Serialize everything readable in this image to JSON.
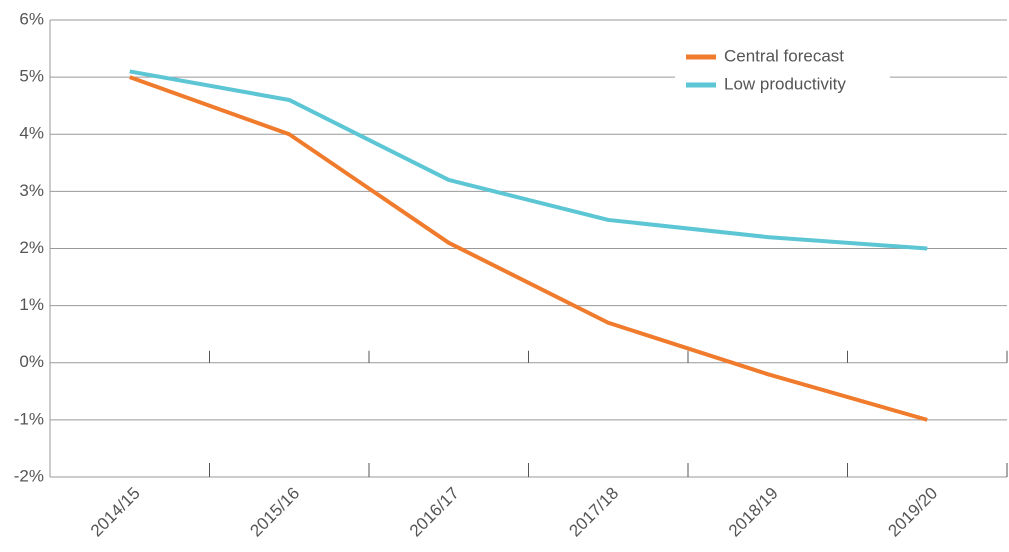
{
  "chart_data": {
    "type": "line",
    "categories": [
      "2014/15",
      "2015/16",
      "2016/17",
      "2017/18",
      "2018/19",
      "2019/20"
    ],
    "series": [
      {
        "name": "Central forecast",
        "color": "#f07b2c",
        "values": [
          5,
          4,
          2.1,
          0.7,
          -0.2,
          -1
        ]
      },
      {
        "name": "Low productivity",
        "color": "#5cc6d5",
        "values": [
          5.1,
          4.6,
          3.2,
          2.5,
          2.2,
          2.0
        ]
      }
    ],
    "ylim": [
      -2,
      6
    ],
    "yticks": [
      {
        "value": -2,
        "label": "-2%"
      },
      {
        "value": -1,
        "label": "-1%"
      },
      {
        "value": 0,
        "label": "0%"
      },
      {
        "value": 1,
        "label": "1%"
      },
      {
        "value": 2,
        "label": "2%"
      },
      {
        "value": 3,
        "label": "3%"
      },
      {
        "value": 4,
        "label": "4%"
      },
      {
        "value": 5,
        "label": "5%"
      },
      {
        "value": 6,
        "label": "6%"
      }
    ],
    "grid": true,
    "legend": "upper right"
  }
}
